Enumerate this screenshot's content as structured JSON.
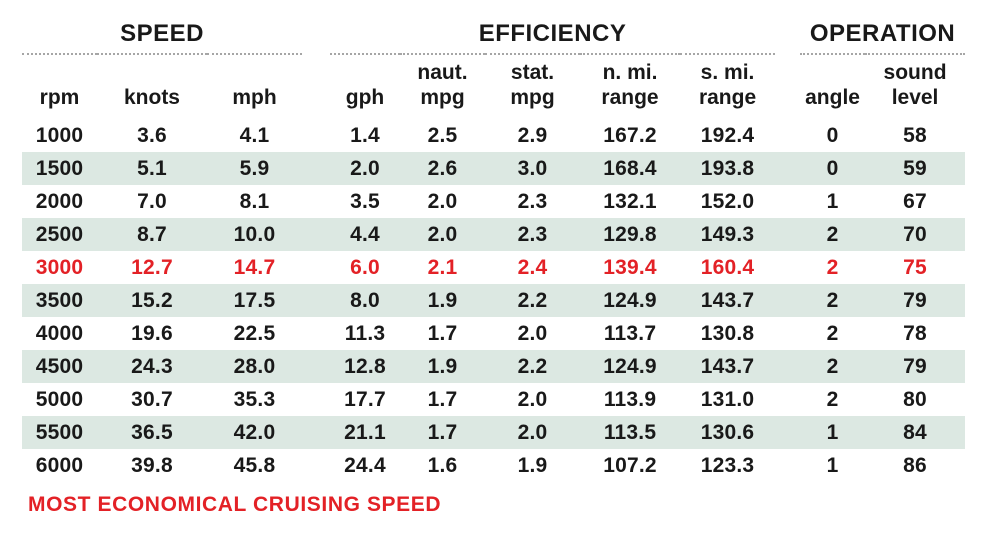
{
  "colors": {
    "band": "#dce8e2",
    "accent_red": "#e32126",
    "text": "#191919",
    "rule": "#a6a6a6"
  },
  "table": {
    "groups": [
      {
        "label": "SPEED"
      },
      {
        "label": "EFFICIENCY"
      },
      {
        "label": "OPERATION"
      }
    ],
    "columns": [
      "rpm",
      "knots",
      "mph",
      "gph",
      "naut.\nmpg",
      "stat.\nmpg",
      "n. mi.\nrange",
      "s. mi.\nrange",
      "angle",
      "sound\nlevel"
    ],
    "rows": [
      {
        "highlight": false,
        "values": [
          "1000",
          "3.6",
          "4.1",
          "1.4",
          "2.5",
          "2.9",
          "167.2",
          "192.4",
          "0",
          "58"
        ]
      },
      {
        "highlight": false,
        "values": [
          "1500",
          "5.1",
          "5.9",
          "2.0",
          "2.6",
          "3.0",
          "168.4",
          "193.8",
          "0",
          "59"
        ]
      },
      {
        "highlight": false,
        "values": [
          "2000",
          "7.0",
          "8.1",
          "3.5",
          "2.0",
          "2.3",
          "132.1",
          "152.0",
          "1",
          "67"
        ]
      },
      {
        "highlight": false,
        "values": [
          "2500",
          "8.7",
          "10.0",
          "4.4",
          "2.0",
          "2.3",
          "129.8",
          "149.3",
          "2",
          "70"
        ]
      },
      {
        "highlight": true,
        "values": [
          "3000",
          "12.7",
          "14.7",
          "6.0",
          "2.1",
          "2.4",
          "139.4",
          "160.4",
          "2",
          "75"
        ]
      },
      {
        "highlight": false,
        "values": [
          "3500",
          "15.2",
          "17.5",
          "8.0",
          "1.9",
          "2.2",
          "124.9",
          "143.7",
          "2",
          "79"
        ]
      },
      {
        "highlight": false,
        "values": [
          "4000",
          "19.6",
          "22.5",
          "11.3",
          "1.7",
          "2.0",
          "113.7",
          "130.8",
          "2",
          "78"
        ]
      },
      {
        "highlight": false,
        "values": [
          "4500",
          "24.3",
          "28.0",
          "12.8",
          "1.9",
          "2.2",
          "124.9",
          "143.7",
          "2",
          "79"
        ]
      },
      {
        "highlight": false,
        "values": [
          "5000",
          "30.7",
          "35.3",
          "17.7",
          "1.7",
          "2.0",
          "113.9",
          "131.0",
          "2",
          "80"
        ]
      },
      {
        "highlight": false,
        "values": [
          "5500",
          "36.5",
          "42.0",
          "21.1",
          "1.7",
          "2.0",
          "113.5",
          "130.6",
          "1",
          "84"
        ]
      },
      {
        "highlight": false,
        "values": [
          "6000",
          "39.8",
          "45.8",
          "24.4",
          "1.6",
          "1.9",
          "107.2",
          "123.3",
          "1",
          "86"
        ]
      }
    ]
  },
  "footnote": "MOST ECONOMICAL CRUISING SPEED",
  "chart_data": {
    "type": "table",
    "title": "Boat performance data table",
    "column_groups": [
      {
        "label": "SPEED",
        "columns": [
          "rpm",
          "knots",
          "mph"
        ]
      },
      {
        "label": "EFFICIENCY",
        "columns": [
          "gph",
          "naut. mpg",
          "stat. mpg",
          "n. mi. range",
          "s. mi. range"
        ]
      },
      {
        "label": "OPERATION",
        "columns": [
          "angle",
          "sound level"
        ]
      }
    ],
    "columns": [
      "rpm",
      "knots",
      "mph",
      "gph",
      "naut. mpg",
      "stat. mpg",
      "n. mi. range",
      "s. mi. range",
      "angle",
      "sound level"
    ],
    "rows": [
      [
        1000,
        3.6,
        4.1,
        1.4,
        2.5,
        2.9,
        167.2,
        192.4,
        0,
        58
      ],
      [
        1500,
        5.1,
        5.9,
        2.0,
        2.6,
        3.0,
        168.4,
        193.8,
        0,
        59
      ],
      [
        2000,
        7.0,
        8.1,
        3.5,
        2.0,
        2.3,
        132.1,
        152.0,
        1,
        67
      ],
      [
        2500,
        8.7,
        10.0,
        4.4,
        2.0,
        2.3,
        129.8,
        149.3,
        2,
        70
      ],
      [
        3000,
        12.7,
        14.7,
        6.0,
        2.1,
        2.4,
        139.4,
        160.4,
        2,
        75
      ],
      [
        3500,
        15.2,
        17.5,
        8.0,
        1.9,
        2.2,
        124.9,
        143.7,
        2,
        79
      ],
      [
        4000,
        19.6,
        22.5,
        11.3,
        1.7,
        2.0,
        113.7,
        130.8,
        2,
        78
      ],
      [
        4500,
        24.3,
        28.0,
        12.8,
        1.9,
        2.2,
        124.9,
        143.7,
        2,
        79
      ],
      [
        5000,
        30.7,
        35.3,
        17.7,
        1.7,
        2.0,
        113.9,
        131.0,
        2,
        80
      ],
      [
        5500,
        36.5,
        42.0,
        21.1,
        1.7,
        2.0,
        113.5,
        130.6,
        1,
        84
      ],
      [
        6000,
        39.8,
        45.8,
        24.4,
        1.6,
        1.9,
        107.2,
        123.3,
        1,
        86
      ]
    ],
    "highlighted_row_rpm": 3000,
    "highlight_meaning": "MOST ECONOMICAL CRUISING SPEED",
    "layout_hints": {
      "banded_rows": true,
      "band_on": "even rows (1500, 2500, 3500, 4500, 5500)",
      "group_header_rule": "dotted"
    }
  }
}
